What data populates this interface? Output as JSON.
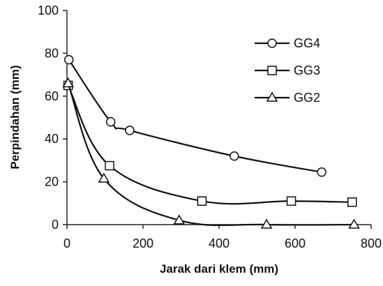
{
  "chart_data": {
    "type": "scatter",
    "title": "",
    "xlabel": "Jarak dari klem (mm)",
    "ylabel": "Perpindahan (mm)",
    "xlim": [
      0,
      800
    ],
    "ylim": [
      0,
      100
    ],
    "x_ticks": [
      "0",
      "200",
      "400",
      "600",
      "800"
    ],
    "y_ticks": [
      "0",
      "20",
      "40",
      "60",
      "80",
      "100"
    ],
    "grid": false,
    "legend_position": "top-right",
    "series": [
      {
        "name": "GG4",
        "marker": "circle",
        "x": [
          5,
          115,
          165,
          440,
          670
        ],
        "y": [
          77,
          48,
          44,
          32,
          24.5
        ]
      },
      {
        "name": "GG3",
        "marker": "square",
        "x": [
          3,
          112,
          355,
          590,
          750
        ],
        "y": [
          65,
          27.5,
          11,
          11,
          10.5
        ]
      },
      {
        "name": "GG2",
        "marker": "triangle",
        "x": [
          3,
          97,
          295,
          525,
          755
        ],
        "y": [
          66,
          21.5,
          2,
          0,
          0
        ]
      }
    ]
  }
}
